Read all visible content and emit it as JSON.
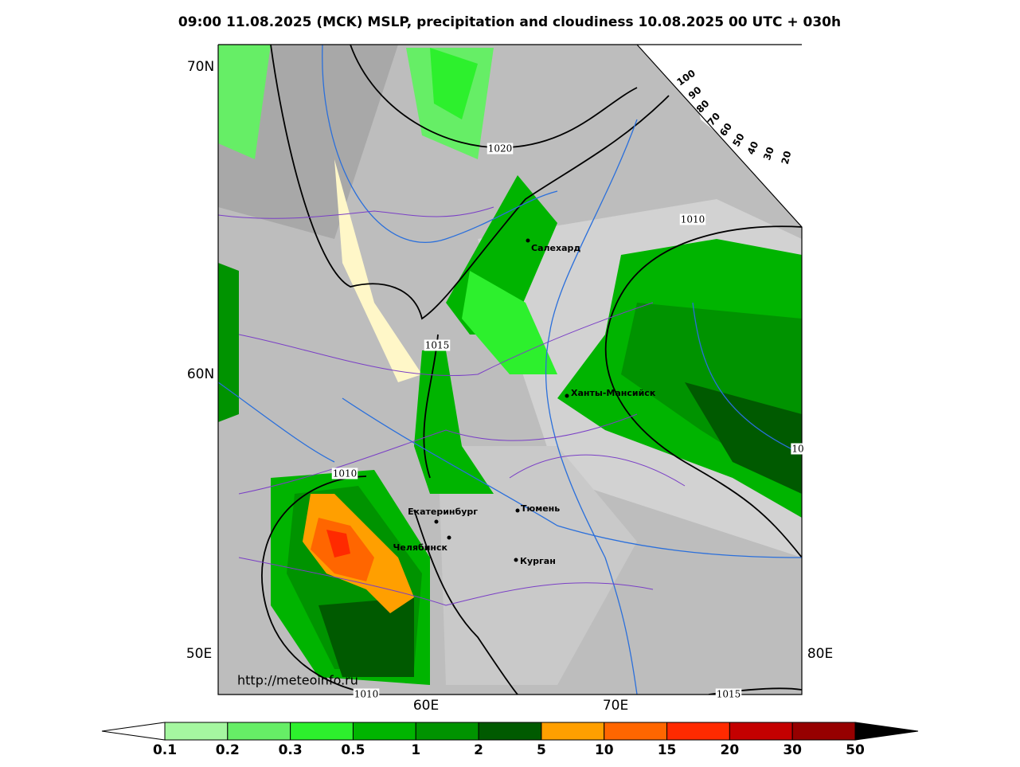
{
  "title": "09:00 11.08.2025 (MCK) MSLP, precipitation and cloudiness 10.08.2025 00 UTC + 030h",
  "map": {
    "lat_labels": [
      "70N",
      "60N"
    ],
    "lon_labels": [
      "50E",
      "60E",
      "70E",
      "80E"
    ],
    "cities": [
      "Салехард",
      "Ханты-Мансийск",
      "Екатеринбург",
      "Тюмень",
      "Челябинск",
      "Курган"
    ],
    "isobar_labels": [
      "1020",
      "1010",
      "1015",
      "1010",
      "10",
      "1015",
      "1010"
    ],
    "watermark": "http://meteoinfo.ru"
  },
  "cloud_scale": {
    "labels": [
      "100",
      "90",
      "80",
      "70",
      "60",
      "50",
      "40",
      "30",
      "20"
    ]
  },
  "legend": {
    "labels": [
      "0.1",
      "0.2",
      "0.3",
      "0.5",
      "1",
      "2",
      "5",
      "10",
      "15",
      "20",
      "30",
      "50"
    ],
    "colors": [
      "#a5f7a0",
      "#66ee66",
      "#2df02d",
      "#00b400",
      "#009300",
      "#005a00",
      "#ff9f00",
      "#ff6600",
      "#ff2a00",
      "#c40000",
      "#960000"
    ]
  }
}
